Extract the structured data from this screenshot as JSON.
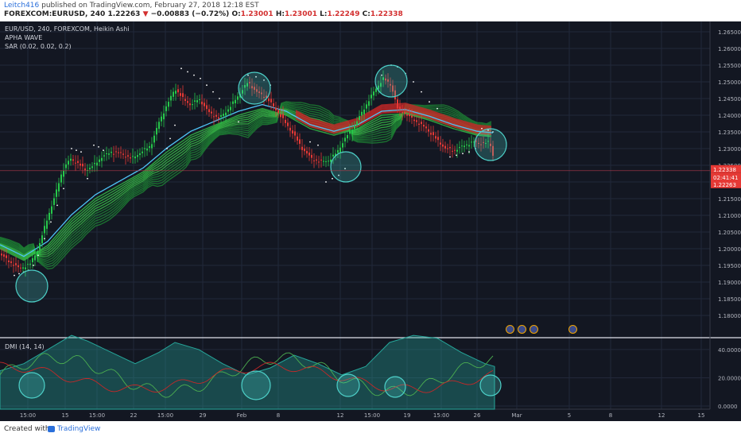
{
  "header": {
    "user": "Leitch416",
    "published": "published on TradingView.com, February 27, 2018 12:18 EST",
    "symbol": "FOREXCOM:EURUSD, 240",
    "last": "1.22263",
    "change": "−0.00883 (−0.72%)",
    "o_label": "O:",
    "o": "1.23001",
    "h_label": "H:",
    "h": "1.23001",
    "l_label": "L:",
    "l": "1.22249",
    "c_label": "C:",
    "c": "1.22338"
  },
  "legend": {
    "line1": "EUR/USD, 240, FOREXCOM, Heikin Ashi",
    "line2": "APHA WAVE",
    "line3": "SAR (0.02, 0.02, 0.2)"
  },
  "dmi_label": "DMI (14, 14)",
  "price_axis": [
    "1.26500",
    "1.26000",
    "1.25500",
    "1.25000",
    "1.24500",
    "1.24000",
    "1.23500",
    "1.23000",
    "1.22500",
    "1.22000",
    "1.21500",
    "1.21000",
    "1.20500",
    "1.20000",
    "1.19500",
    "1.19000",
    "1.18500",
    "1.18000"
  ],
  "price_markers": {
    "close": "1.22338",
    "timer": "02:41:41",
    "last": "1.22263"
  },
  "dmi_axis": [
    "40.0000",
    "20.0000",
    "0.0000"
  ],
  "time_axis": [
    "15:00",
    "15",
    "15:00",
    "22",
    "15:00",
    "29",
    "Feb",
    "8",
    "12",
    "15:00",
    "19",
    "15:00",
    "26",
    "Mar",
    "5",
    "8",
    "12",
    "15"
  ],
  "events": [
    "1",
    "2",
    "1",
    "4"
  ],
  "colors": {
    "bg": "#131722",
    "up": "#26c74a",
    "down": "#e53935",
    "ema": "#4fc3f7",
    "circle": "#4dd0c8",
    "marker": "#e53935"
  },
  "footer": {
    "created": "Created with",
    "brand": "TradingView"
  }
}
